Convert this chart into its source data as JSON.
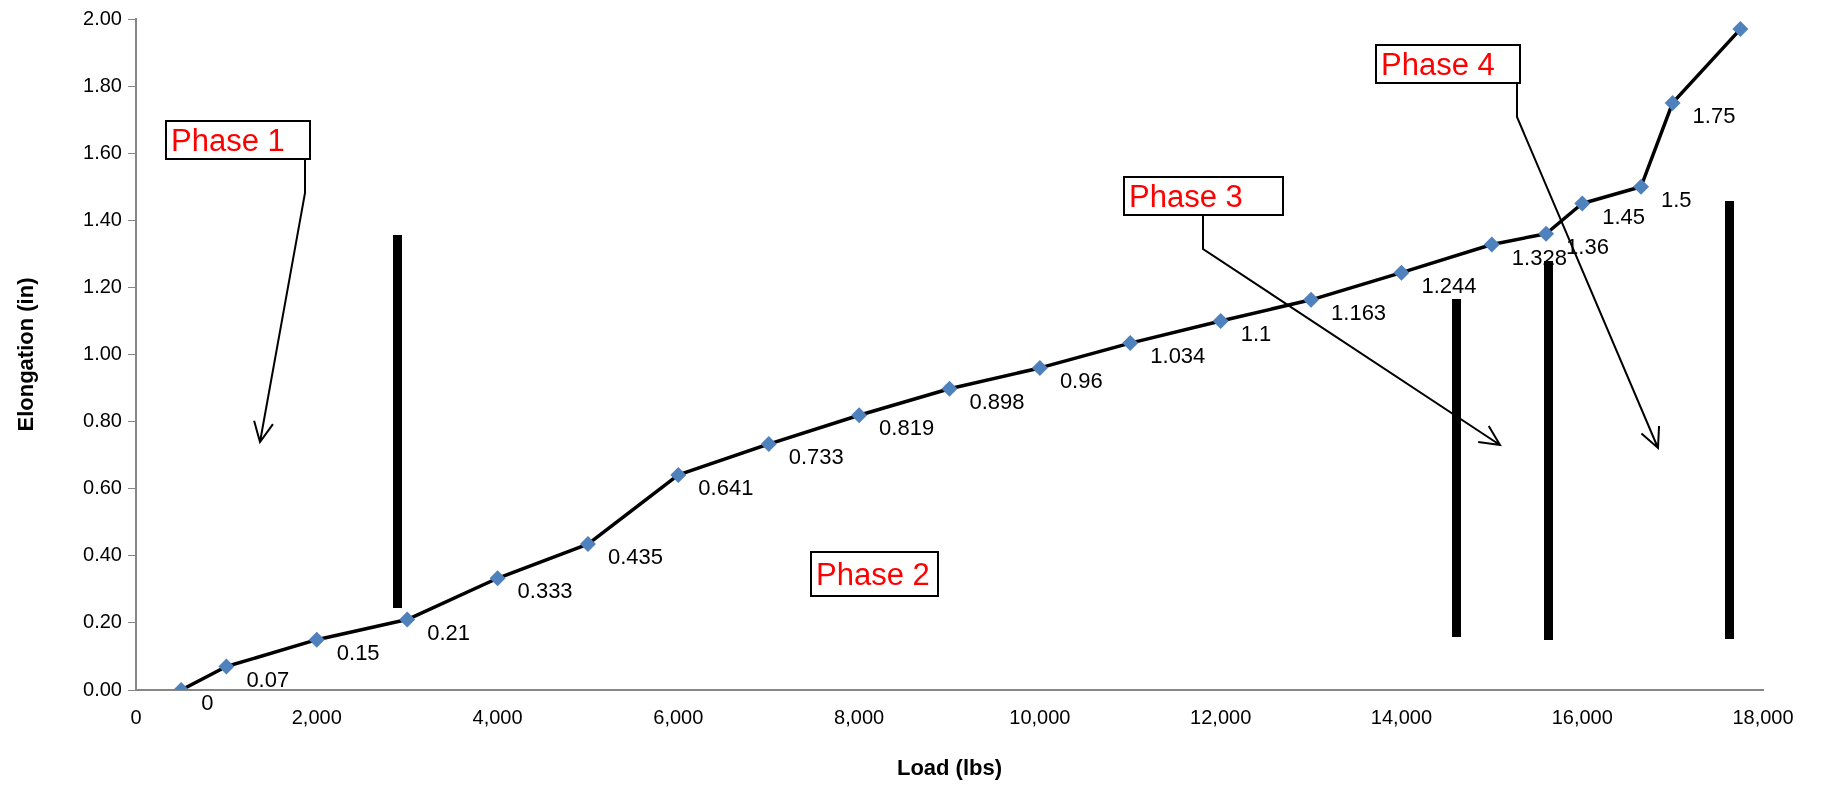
{
  "chart_data": {
    "type": "line",
    "xlabel": "Load (lbs)",
    "ylabel": "Elongation (in)",
    "x": [
      500,
      1000,
      2000,
      3000,
      4000,
      5000,
      6000,
      7000,
      8000,
      9000,
      10000,
      11000,
      12000,
      13000,
      14000,
      15000,
      15600,
      16000,
      16650,
      17000,
      17750
    ],
    "series": [
      {
        "color": "#4f81bd",
        "values": [
          0,
          0.07,
          0.15,
          0.21,
          0.333,
          0.435,
          0.641,
          0.733,
          0.819,
          0.898,
          0.96,
          1.034,
          1.1,
          1.163,
          1.244,
          1.328,
          1.36,
          1.45,
          1.5,
          1.75,
          1.97
        ],
        "value_labels": [
          "0",
          "0.07",
          "0.15",
          "0.21",
          "0.333",
          "0.435",
          "0.641",
          "0.733",
          "0.819",
          "0.898",
          "0.96",
          "1.034",
          "1.1",
          "1.163",
          "1.244",
          "1.328",
          "1.36",
          "1.45",
          "1.5",
          "1.75",
          null
        ]
      }
    ],
    "xlim": [
      0,
      18000
    ],
    "xticks": [
      0,
      {
        "value": 2000,
        "label": "2,000"
      },
      {
        "value": 4000,
        "label": "4,000"
      },
      {
        "value": 6000,
        "label": "6,000"
      },
      {
        "value": 8000,
        "label": "8,000"
      },
      {
        "value": 10000,
        "label": "10,000"
      },
      {
        "value": 12000,
        "label": "12,000"
      },
      {
        "value": 14000,
        "label": "14,000"
      },
      {
        "value": 16000,
        "label": "16,000"
      },
      {
        "value": 18000,
        "label": "18,000"
      }
    ],
    "ylim": [
      0,
      2
    ],
    "yticks": [
      {
        "value": 0,
        "label": "0.00"
      },
      {
        "value": 0.2,
        "label": "0.20"
      },
      {
        "value": 0.4,
        "label": "0.40"
      },
      {
        "value": 0.6,
        "label": "0.60"
      },
      {
        "value": 0.8,
        "label": "0.80"
      },
      {
        "value": 1,
        "label": "1.00"
      },
      {
        "value": 1.2,
        "label": "1.20"
      },
      {
        "value": 1.4,
        "label": "1.40"
      },
      {
        "value": 1.6,
        "label": "1.60"
      },
      {
        "value": 1.8,
        "label": "1.80"
      },
      {
        "value": 2,
        "label": "2.00"
      }
    ],
    "annotations": [
      "Phase 1",
      "Phase 2",
      "Phase 3",
      "Phase 4"
    ],
    "marker": "diamond",
    "line_style": "solid",
    "grid": false,
    "legend": false
  }
}
